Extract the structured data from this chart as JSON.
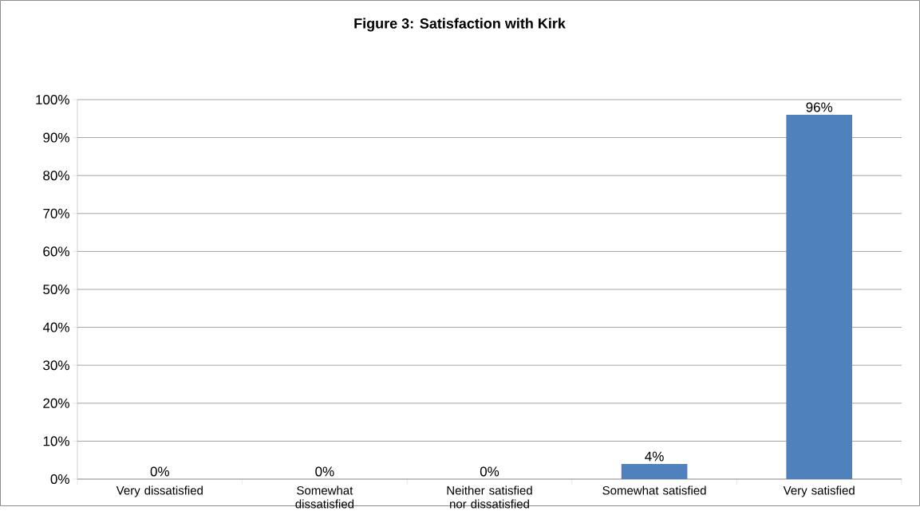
{
  "chart_data": {
    "type": "bar",
    "title": "Figure 3: Satisfaction with Kirk",
    "categories": [
      "Very dissatisfied",
      "Somewhat dissatisfied",
      "Neither satisfied nor dissatisfied",
      "Somewhat satisfied",
      "Very satisfied"
    ],
    "values": [
      0,
      0,
      0,
      4,
      96
    ],
    "value_labels": [
      "0%",
      "0%",
      "0%",
      "4%",
      "96%"
    ],
    "color": "#4f81bd",
    "ylim": [
      0,
      100
    ],
    "yticks": [
      {
        "value": 0,
        "label": "0%"
      },
      {
        "value": 10,
        "label": "10%"
      },
      {
        "value": 20,
        "label": "20%"
      },
      {
        "value": 30,
        "label": "30%"
      },
      {
        "value": 40,
        "label": "40%"
      },
      {
        "value": 50,
        "label": "50%"
      },
      {
        "value": 60,
        "label": "60%"
      },
      {
        "value": 70,
        "label": "70%"
      },
      {
        "value": 80,
        "label": "80%"
      },
      {
        "value": 90,
        "label": "90%"
      },
      {
        "value": 100,
        "label": "100%"
      }
    ],
    "grid": "y"
  }
}
